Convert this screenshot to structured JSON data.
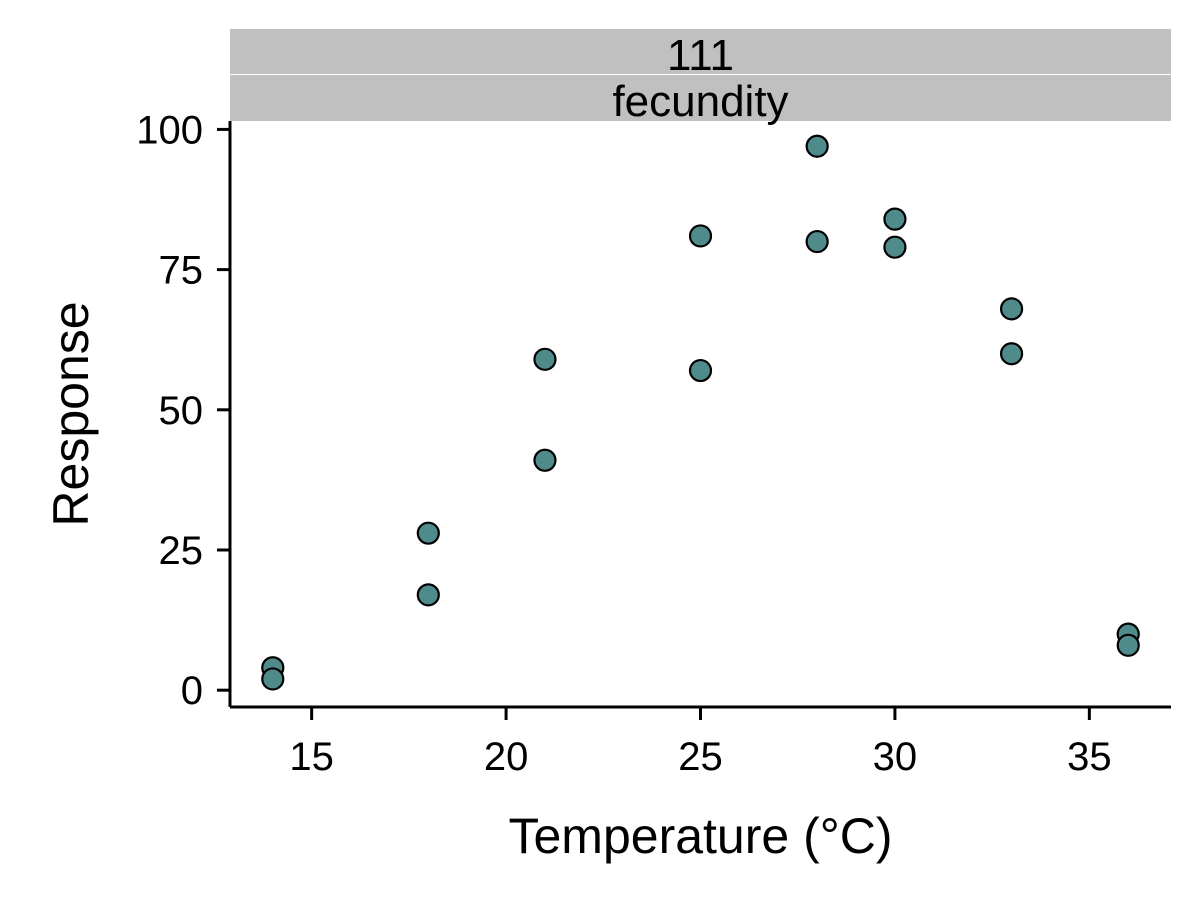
{
  "chart_data": {
    "type": "scatter",
    "facet_strip": [
      "111",
      "fecundity"
    ],
    "xlabel": "Temperature (°C)",
    "ylabel": "Response",
    "xlim": [
      12.9,
      37.1
    ],
    "ylim": [
      -3,
      101.5
    ],
    "x_ticks": [
      15,
      20,
      25,
      30,
      35
    ],
    "y_ticks": [
      0,
      25,
      50,
      75,
      100
    ],
    "grid": false,
    "legend": "none",
    "point_fill": "#4f8b8b",
    "point_stroke": "#000000",
    "strip_fill": "#c0c0c0",
    "points": [
      {
        "x": 14,
        "y": 4
      },
      {
        "x": 14,
        "y": 2
      },
      {
        "x": 18,
        "y": 28
      },
      {
        "x": 18,
        "y": 17
      },
      {
        "x": 21,
        "y": 59
      },
      {
        "x": 21,
        "y": 41
      },
      {
        "x": 25,
        "y": 81
      },
      {
        "x": 25,
        "y": 57
      },
      {
        "x": 28,
        "y": 97
      },
      {
        "x": 28,
        "y": 80
      },
      {
        "x": 30,
        "y": 84
      },
      {
        "x": 30,
        "y": 79
      },
      {
        "x": 33,
        "y": 68
      },
      {
        "x": 33,
        "y": 60
      },
      {
        "x": 36,
        "y": 10
      },
      {
        "x": 36,
        "y": 8
      }
    ]
  }
}
